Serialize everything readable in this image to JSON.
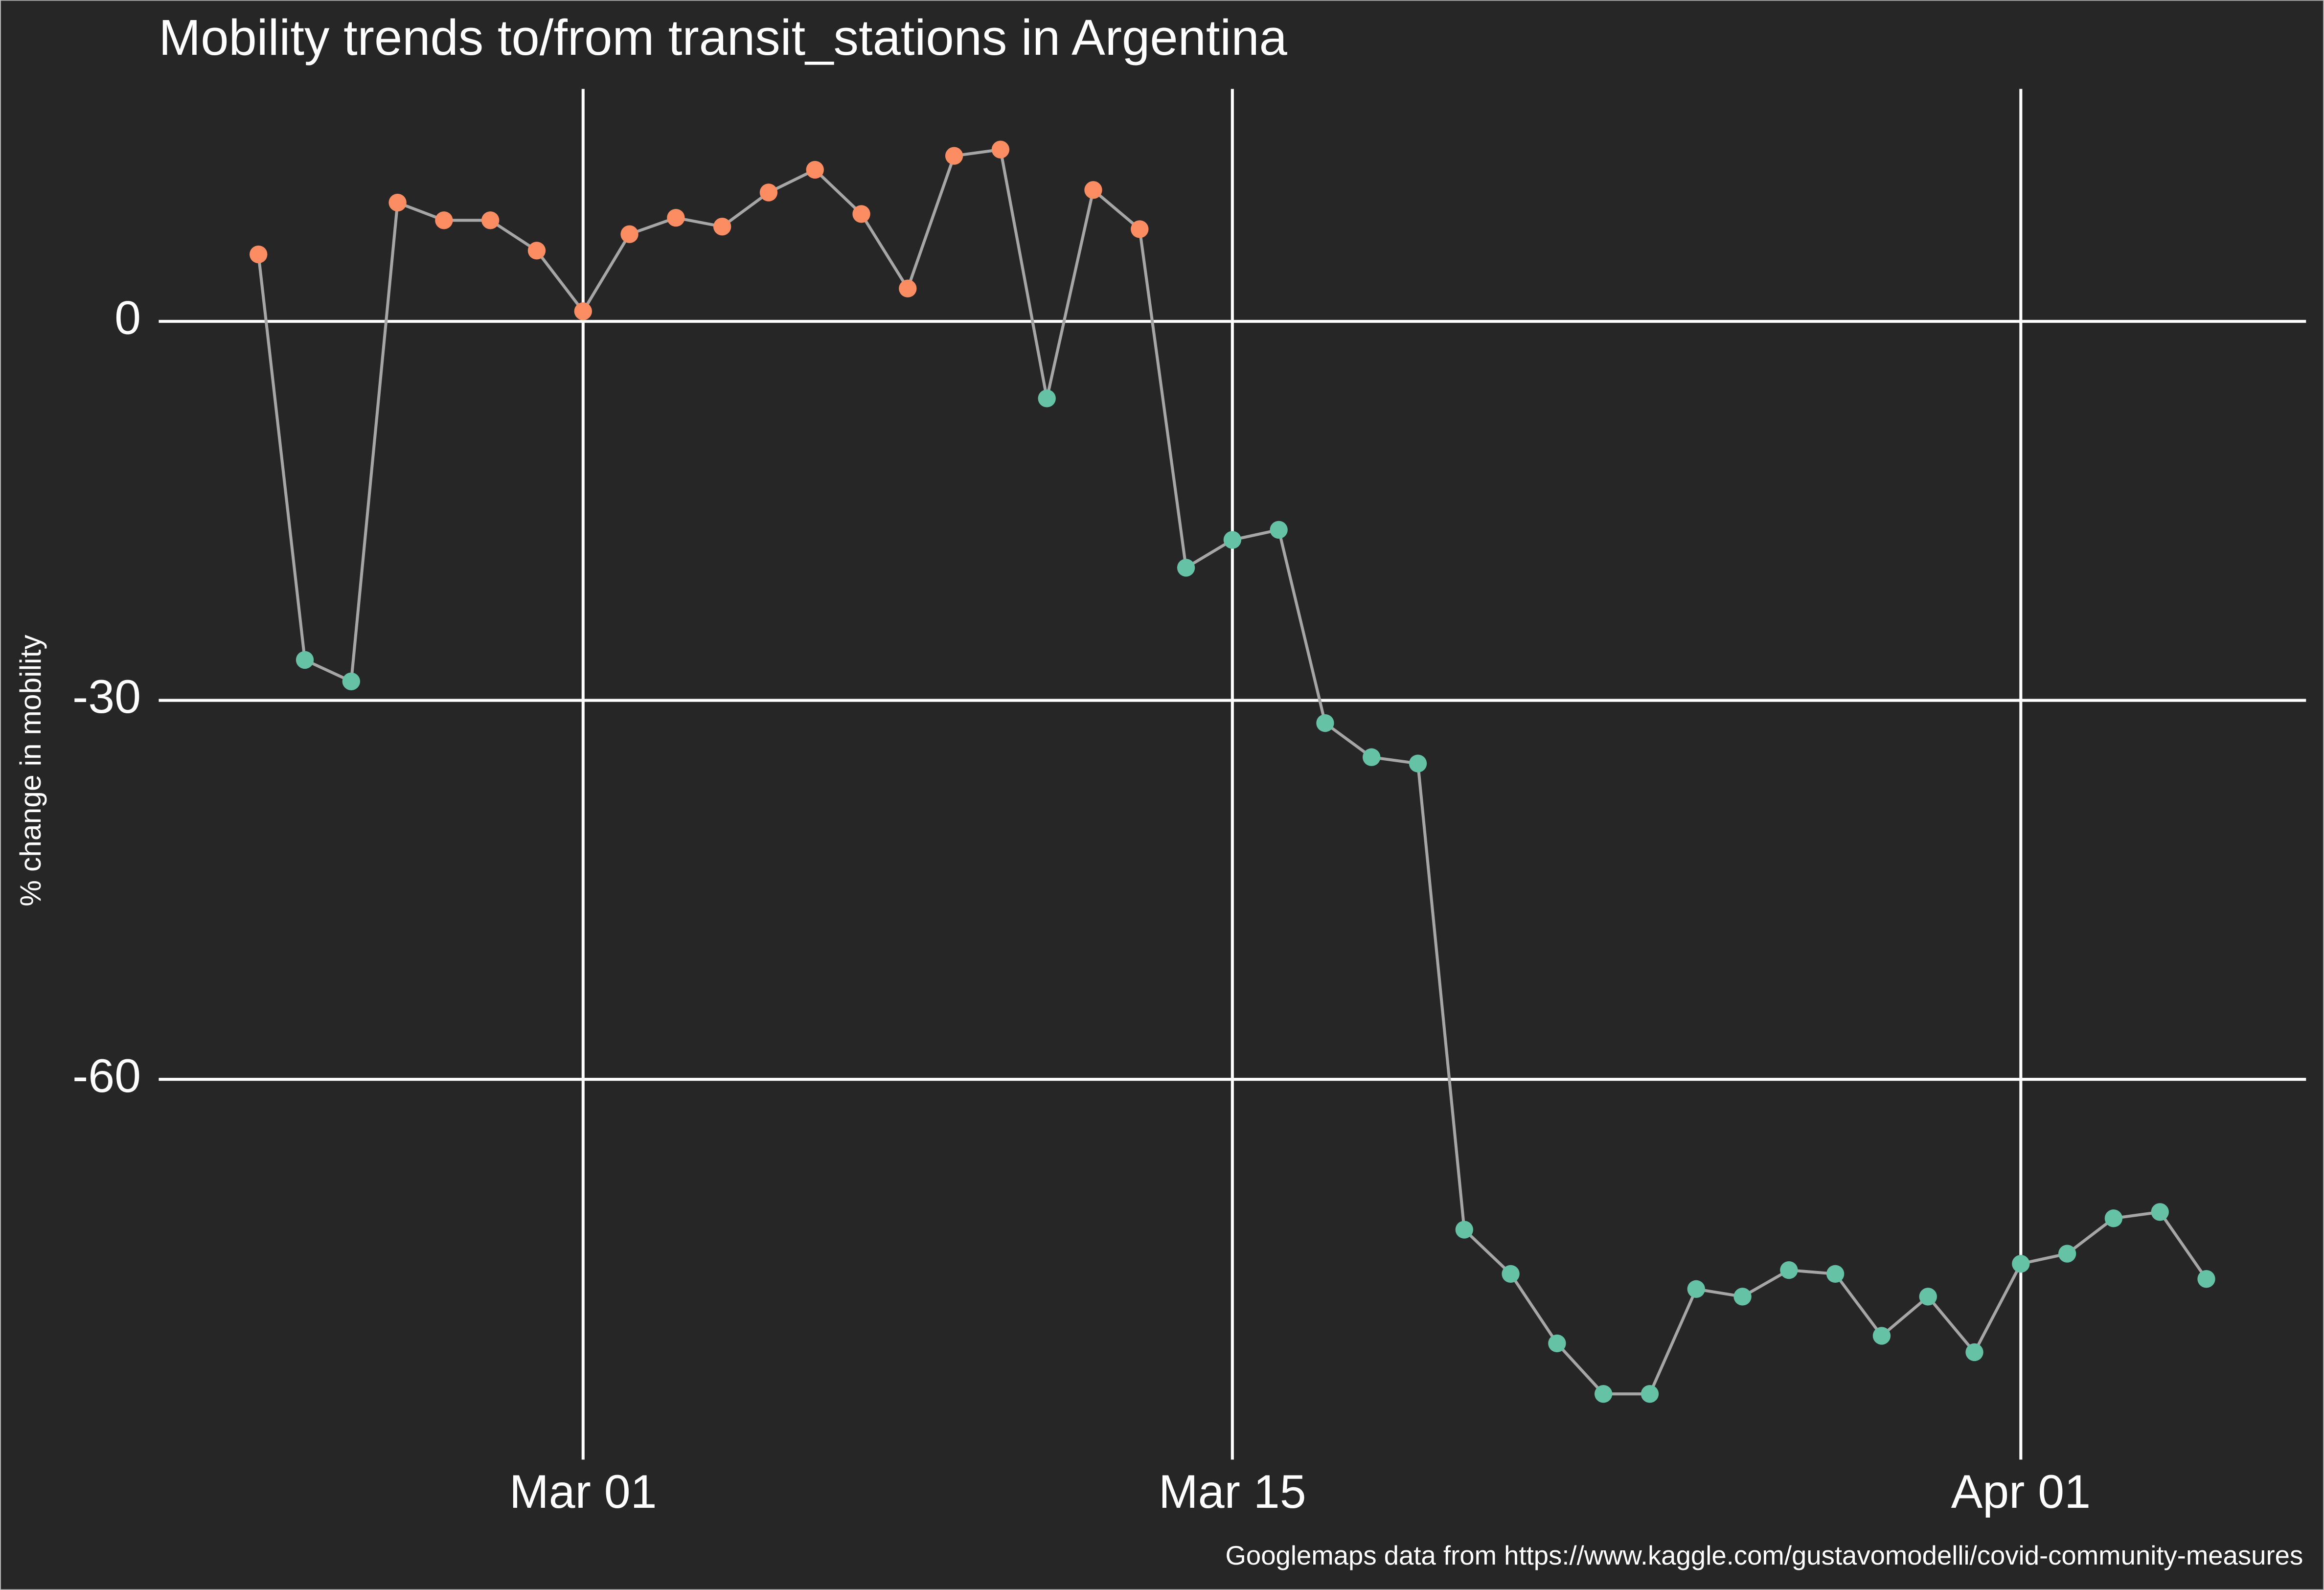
{
  "chart_data": {
    "type": "line",
    "title": "Mobility trends to/from transit_stations in Argentina",
    "y_label": "% change in mobility",
    "caption": "Googlemaps data from https://www.kaggle.com/gustavomodelli/covid-community-measures",
    "x": [
      "Feb 23",
      "Feb 24",
      "Feb 25",
      "Feb 26",
      "Feb 27",
      "Feb 28",
      "Feb 29",
      "Mar 01",
      "Mar 02",
      "Mar 03",
      "Mar 04",
      "Mar 05",
      "Mar 06",
      "Mar 07",
      "Mar 08",
      "Mar 09",
      "Mar 10",
      "Mar 11",
      "Mar 12",
      "Mar 13",
      "Mar 14",
      "Mar 15",
      "Mar 16",
      "Mar 17",
      "Mar 18",
      "Mar 19",
      "Mar 20",
      "Mar 21",
      "Mar 22",
      "Mar 23",
      "Mar 24",
      "Mar 25",
      "Mar 26",
      "Mar 27",
      "Mar 28",
      "Mar 29",
      "Mar 30",
      "Mar 31",
      "Apr 01",
      "Apr 02",
      "Apr 03",
      "Apr 04",
      "Apr 05"
    ],
    "values": [
      5.3,
      -26.8,
      -28.5,
      9.4,
      8.0,
      8.0,
      5.6,
      0.8,
      6.9,
      8.2,
      7.5,
      10.2,
      12.0,
      8.5,
      2.6,
      13.1,
      13.6,
      -6.1,
      10.4,
      7.3,
      -19.5,
      -17.3,
      -16.5,
      -31.8,
      -34.5,
      -35.0,
      -71.9,
      -75.4,
      -80.9,
      -84.9,
      -84.9,
      -76.6,
      -77.2,
      -75.1,
      -75.4,
      -80.3,
      -77.2,
      -81.6,
      -74.6,
      -73.8,
      -71.0,
      -70.5,
      -75.8
    ],
    "line_color": "#a6a6a6",
    "color_above_zero": "#fc8d62",
    "color_below_zero": "#66c2a5",
    "xticks": [
      "Mar 01",
      "Mar 15",
      "Apr 01"
    ],
    "ylim": [
      -90.1,
      18.4
    ],
    "yticks": [
      0,
      -30,
      -60
    ],
    "grid": true
  }
}
